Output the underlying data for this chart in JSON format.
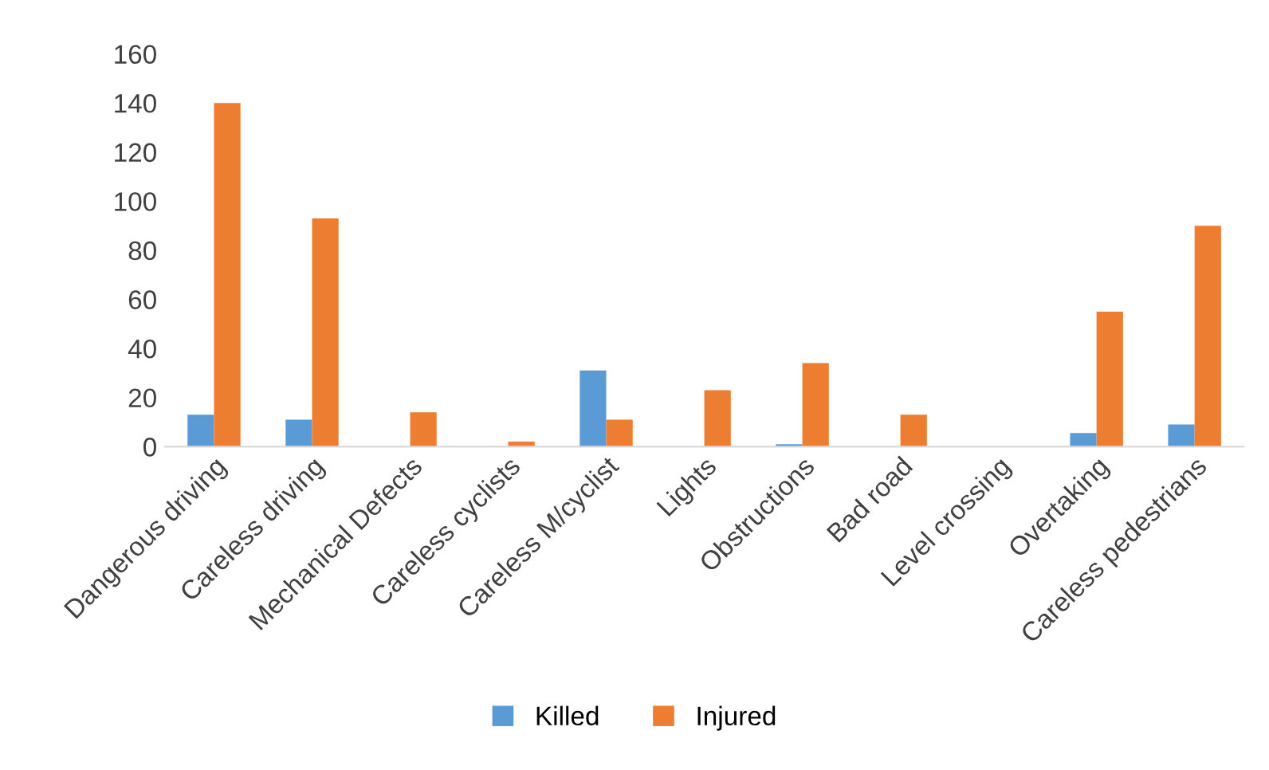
{
  "chart_data": {
    "type": "bar",
    "categories": [
      "Dangerous driving",
      "Careless driving",
      "Mechanical Defects",
      "Careless cyclists",
      "Careless M/cyclist",
      "Lights",
      "Obstructions",
      "Bad road",
      "Level crossing",
      "Overtaking",
      "Careless pedestrians"
    ],
    "series": [
      {
        "name": "Killed",
        "color": "#5b9bd5",
        "values": [
          13,
          11,
          null,
          null,
          31,
          null,
          1,
          null,
          null,
          5.5,
          9
        ]
      },
      {
        "name": "Injured",
        "color": "#ed7d31",
        "values": [
          140,
          93,
          14,
          2,
          11,
          23,
          34,
          13,
          null,
          55,
          90
        ]
      }
    ],
    "ylim": [
      0,
      160
    ],
    "yticks": [
      0,
      20,
      40,
      60,
      80,
      100,
      120,
      140,
      160
    ],
    "grid": false,
    "legend": "bottom"
  }
}
